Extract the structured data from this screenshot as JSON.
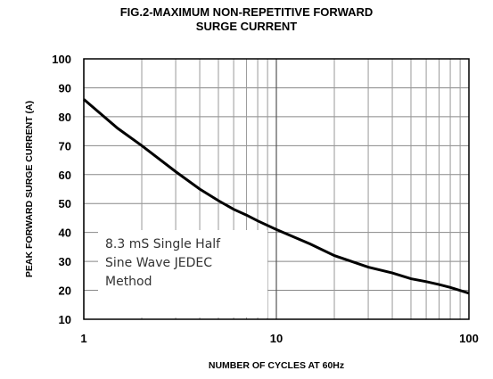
{
  "chart_data": {
    "type": "line",
    "title": "FIG.2-MAXIMUM NON-REPETITIVE FORWARD",
    "subtitle": "SURGE CURRENT",
    "xlabel": "NUMBER OF CYCLES AT 60Hz",
    "ylabel": "PEAK FORWARD SURGE CURRENT (A)",
    "x_scale": "log",
    "xlim": [
      1,
      100
    ],
    "ylim": [
      10,
      100
    ],
    "x_ticks": [
      "1",
      "10",
      "100"
    ],
    "y_ticks": [
      "100",
      "90",
      "80",
      "70",
      "60",
      "50",
      "40",
      "30",
      "20",
      "10"
    ],
    "grid": true,
    "annotation": [
      "8.3 mS Single Half",
      "Sine Wave JEDEC",
      "Method"
    ],
    "series": [
      {
        "x": [
          1,
          1.5,
          2,
          3,
          4,
          5,
          6,
          7,
          8,
          10,
          15,
          20,
          30,
          40,
          50,
          60,
          70,
          80,
          100
        ],
        "y": [
          86,
          76,
          70,
          61,
          55,
          51,
          48,
          46,
          44,
          41,
          36,
          32,
          28,
          26,
          24,
          23,
          22,
          21,
          19
        ],
        "color": "#000000"
      }
    ]
  }
}
